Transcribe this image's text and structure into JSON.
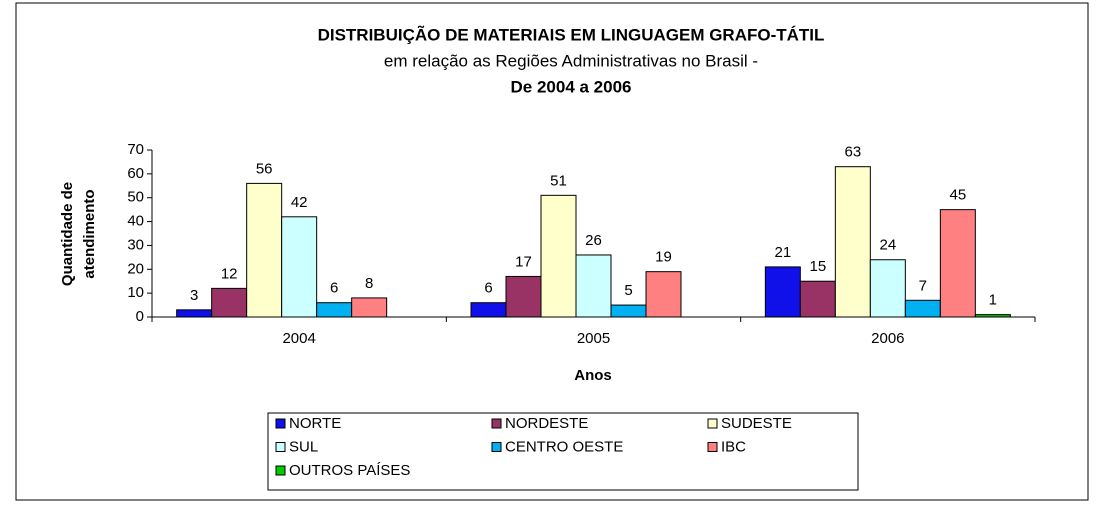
{
  "chart_data": {
    "type": "bar",
    "title": "DISTRIBUIÇÃO DE MATERIAIS EM LINGUAGEM GRAFO-TÁTIL",
    "subtitle": "em relação as Regiões Administrativas no Brasil -",
    "subtitle2": "De 2004 a 2006",
    "y_label": [
      "Quantidade de",
      "atendimento"
    ],
    "x_label": "Anos",
    "categories": [
      "2004",
      "2005",
      "2006"
    ],
    "series": [
      {
        "name": "NORTE",
        "color": "#1010e8",
        "values": [
          3,
          6,
          21
        ]
      },
      {
        "name": "NORDESTE",
        "color": "#993366",
        "values": [
          12,
          17,
          15
        ]
      },
      {
        "name": "SUDESTE",
        "color": "#ffffcc",
        "values": [
          56,
          51,
          63
        ]
      },
      {
        "name": "SUL",
        "color": "#ccffff",
        "values": [
          42,
          26,
          24
        ]
      },
      {
        "name": "CENTRO OESTE",
        "color": "#00b0f0",
        "values": [
          6,
          5,
          7
        ]
      },
      {
        "name": "IBC",
        "color": "#ff8080",
        "values": [
          8,
          19,
          45
        ]
      },
      {
        "name": "OUTROS PAÍSES",
        "color": "#00cc00",
        "values": [
          null,
          null,
          1
        ]
      }
    ],
    "ylim": [
      0,
      70
    ],
    "yticks": [
      0,
      10,
      20,
      30,
      40,
      50,
      60,
      70
    ],
    "grid": false,
    "legend": "bottom"
  }
}
